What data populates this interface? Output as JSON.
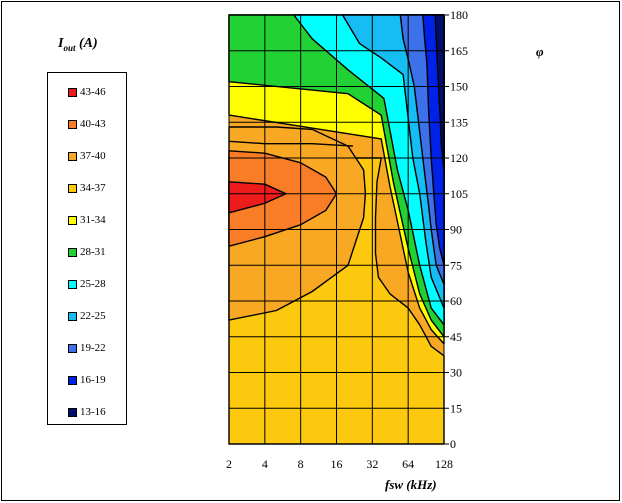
{
  "chart_data": {
    "type": "heatmap",
    "subtype": "filled-contour",
    "legend_title_main": "I",
    "legend_title_sub": "out",
    "legend_title_unit": "(A)",
    "legend_position": "left",
    "xlabel": "fsw (kHz)",
    "ylabel": "φ",
    "x_scale": "log2",
    "x_ticks": [
      2,
      4,
      8,
      16,
      32,
      64,
      128
    ],
    "x_tick_labels": [
      "2",
      "4",
      "8",
      "16",
      "32",
      "64",
      "128"
    ],
    "y_ticks": [
      0,
      15,
      30,
      45,
      60,
      75,
      90,
      105,
      120,
      135,
      150,
      165,
      180
    ],
    "y_tick_labels": [
      "0",
      "15",
      "30",
      "45",
      "60",
      "75",
      "90",
      "105",
      "120",
      "135",
      "150",
      "165",
      "180"
    ],
    "xlim": [
      2,
      128
    ],
    "ylim": [
      0,
      180
    ],
    "grid": true,
    "legend": [
      {
        "label": "43-46",
        "color": "#ee1b1b"
      },
      {
        "label": "40-43",
        "color": "#f97c26"
      },
      {
        "label": "37-40",
        "color": "#f9a824"
      },
      {
        "label": "34-37",
        "color": "#fcc90f"
      },
      {
        "label": "31-34",
        "color": "#ffff00"
      },
      {
        "label": "28-31",
        "color": "#22d133"
      },
      {
        "label": "25-28",
        "color": "#00ffff"
      },
      {
        "label": "22-25",
        "color": "#16bdf4"
      },
      {
        "label": "19-22",
        "color": "#3d71ea"
      },
      {
        "label": "16-19",
        "color": "#0022e8"
      },
      {
        "label": "13-16",
        "color": "#000f6b"
      }
    ],
    "regions": [
      {
        "range": "34-37",
        "points": [
          [
            2,
            0
          ],
          [
            128,
            0
          ],
          [
            128,
            37
          ],
          [
            100,
            41
          ],
          [
            80,
            50
          ],
          [
            64,
            57
          ],
          [
            45,
            63
          ],
          [
            36,
            70
          ],
          [
            34,
            80
          ],
          [
            34,
            95
          ],
          [
            35,
            110
          ],
          [
            38,
            120
          ],
          [
            2,
            120
          ]
        ]
      },
      {
        "range": "31-34",
        "points": [
          [
            2,
            180
          ],
          [
            2,
            138
          ],
          [
            38,
            128
          ],
          [
            45,
            108
          ],
          [
            64,
            72
          ],
          [
            80,
            57
          ],
          [
            100,
            48
          ],
          [
            128,
            42
          ],
          [
            128,
            180
          ]
        ]
      },
      {
        "range": "28-31",
        "points": [
          [
            2,
            180
          ],
          [
            2,
            152
          ],
          [
            20,
            147
          ],
          [
            38,
            138
          ],
          [
            48,
            110
          ],
          [
            64,
            82
          ],
          [
            80,
            63
          ],
          [
            100,
            52
          ],
          [
            128,
            45
          ],
          [
            128,
            180
          ]
        ]
      },
      {
        "range": "25-28",
        "points": [
          [
            7,
            180
          ],
          [
            10,
            170
          ],
          [
            20,
            157
          ],
          [
            40,
            145
          ],
          [
            52,
            115
          ],
          [
            64,
            98
          ],
          [
            80,
            75
          ],
          [
            100,
            57
          ],
          [
            128,
            50
          ],
          [
            128,
            180
          ]
        ]
      },
      {
        "range": "22-25",
        "points": [
          [
            18,
            180
          ],
          [
            25,
            168
          ],
          [
            38,
            162
          ],
          [
            58,
            155
          ],
          [
            70,
            120
          ],
          [
            80,
            105
          ],
          [
            90,
            85
          ],
          [
            100,
            70
          ],
          [
            128,
            57
          ],
          [
            128,
            180
          ]
        ]
      },
      {
        "range": "19-22",
        "points": [
          [
            55,
            180
          ],
          [
            58,
            170
          ],
          [
            65,
            160
          ],
          [
            72,
            150
          ],
          [
            85,
            120
          ],
          [
            95,
            100
          ],
          [
            100,
            90
          ],
          [
            110,
            75
          ],
          [
            128,
            67
          ],
          [
            128,
            180
          ]
        ]
      },
      {
        "range": "16-19",
        "points": [
          [
            85,
            180
          ],
          [
            88,
            170
          ],
          [
            92,
            160
          ],
          [
            95,
            140
          ],
          [
            100,
            120
          ],
          [
            105,
            105
          ],
          [
            110,
            92
          ],
          [
            118,
            82
          ],
          [
            128,
            75
          ],
          [
            128,
            180
          ]
        ]
      },
      {
        "range": "13-16",
        "points": [
          [
            108,
            180
          ],
          [
            110,
            170
          ],
          [
            113,
            158
          ],
          [
            118,
            140
          ],
          [
            122,
            125
          ],
          [
            128,
            115
          ],
          [
            128,
            180
          ]
        ]
      },
      {
        "range": "37-40",
        "points": [
          [
            2,
            52
          ],
          [
            5,
            56
          ],
          [
            10,
            64
          ],
          [
            20,
            75
          ],
          [
            27,
            95
          ],
          [
            28,
            105
          ],
          [
            27,
            115
          ],
          [
            20,
            125
          ],
          [
            10,
            132
          ],
          [
            5,
            133
          ],
          [
            2,
            133
          ]
        ]
      },
      {
        "range": "40-43",
        "points": [
          [
            2,
            83
          ],
          [
            4,
            87
          ],
          [
            8,
            92
          ],
          [
            13,
            98
          ],
          [
            16,
            105
          ],
          [
            13,
            112
          ],
          [
            8,
            118
          ],
          [
            4,
            122
          ],
          [
            2,
            123
          ]
        ]
      },
      {
        "range": "43-46",
        "points": [
          [
            2,
            97
          ],
          [
            4,
            101
          ],
          [
            6,
            105
          ],
          [
            4,
            109
          ],
          [
            2,
            110
          ]
        ]
      }
    ],
    "extra_contours": [
      [
        [
          2,
          127
        ],
        [
          4,
          126
        ],
        [
          10,
          126
        ],
        [
          22,
          125
        ]
      ]
    ]
  }
}
